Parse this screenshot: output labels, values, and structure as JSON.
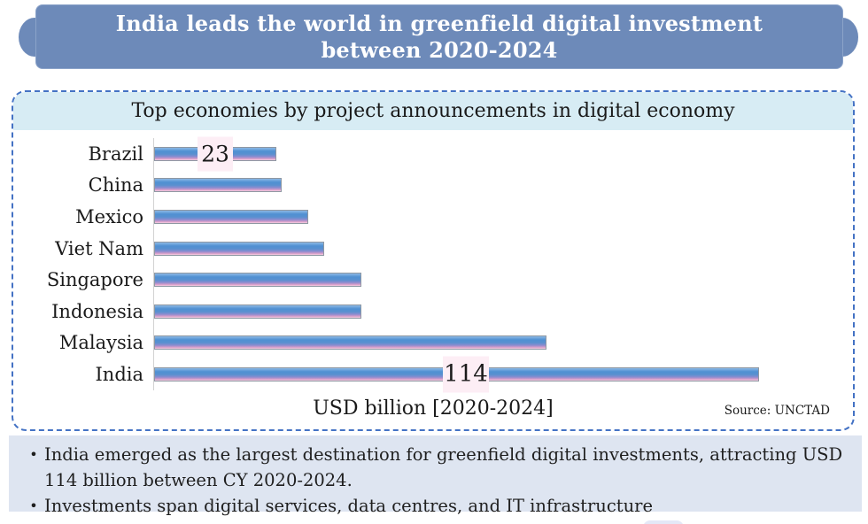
{
  "banner": {
    "title_line1": "India leads the world in greenfield digital investment",
    "title_line2": "between 2020-2024",
    "bg_color": "#6d8ab9",
    "text_color": "#ffffff"
  },
  "chart_panel": {
    "title": "Top economies by project announcements in digital economy",
    "title_bg_color": "#d7ecf4",
    "border_color": "#4472c4",
    "source": "Source: UNCTAD"
  },
  "chart_data": {
    "type": "bar",
    "orientation": "horizontal",
    "title": "Top economies by project announcements in digital economy",
    "categories": [
      "Brazil",
      "China",
      "Mexico",
      "Viet Nam",
      "Singapore",
      "Indonesia",
      "Malaysia",
      "India"
    ],
    "values": [
      23,
      24,
      29,
      32,
      39,
      39,
      74,
      114
    ],
    "data_labels": {
      "brazil": "23",
      "india": "114"
    },
    "xlabel": "USD billion [2020-2024]",
    "xlim": [
      0,
      128
    ],
    "grid": false,
    "legend": false,
    "bar_gradient": [
      "#8cb8e5",
      "#4f90d2",
      "#8d8ccf",
      "#d59bc9",
      "#f6d0e1"
    ],
    "data_label_bg_color": "#fdeef5"
  },
  "notes": {
    "bg_color": "#dee5f1",
    "bullet_glyph": "•",
    "bullets": [
      "India emerged as the largest destination for greenfield digital investments, attracting USD 114 billion between CY 2020-2024.",
      "Investments span digital services, data centres, and IT infrastructure"
    ]
  }
}
